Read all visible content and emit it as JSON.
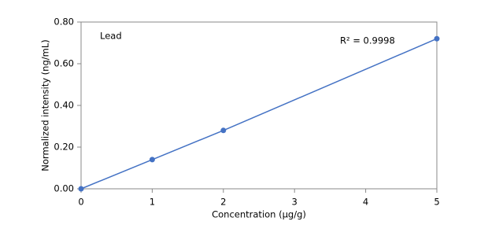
{
  "chart_data": {
    "type": "scatter",
    "x_label": "Concentration (μg/g)",
    "y_label": "Normalized intensity (ng/mL)",
    "annotations": [
      "Lead",
      "R² = 0.9998"
    ],
    "x": [
      0,
      1,
      2,
      5
    ],
    "values": [
      0,
      0.14,
      0.28,
      0.72
    ],
    "color": "#4472c4",
    "line": true,
    "xlim": [
      0,
      5
    ],
    "xticks": [
      0,
      1,
      2,
      3,
      4,
      5
    ],
    "ylim": [
      0,
      0.8
    ],
    "yticks": [
      {
        "value": 0,
        "label": "0.00"
      },
      {
        "value": 0.2,
        "label": "0.20"
      },
      {
        "value": 0.4,
        "label": "0.40"
      },
      {
        "value": 0.6,
        "label": "0.60"
      },
      {
        "value": 0.8,
        "label": "0.80"
      }
    ],
    "grid": false
  }
}
